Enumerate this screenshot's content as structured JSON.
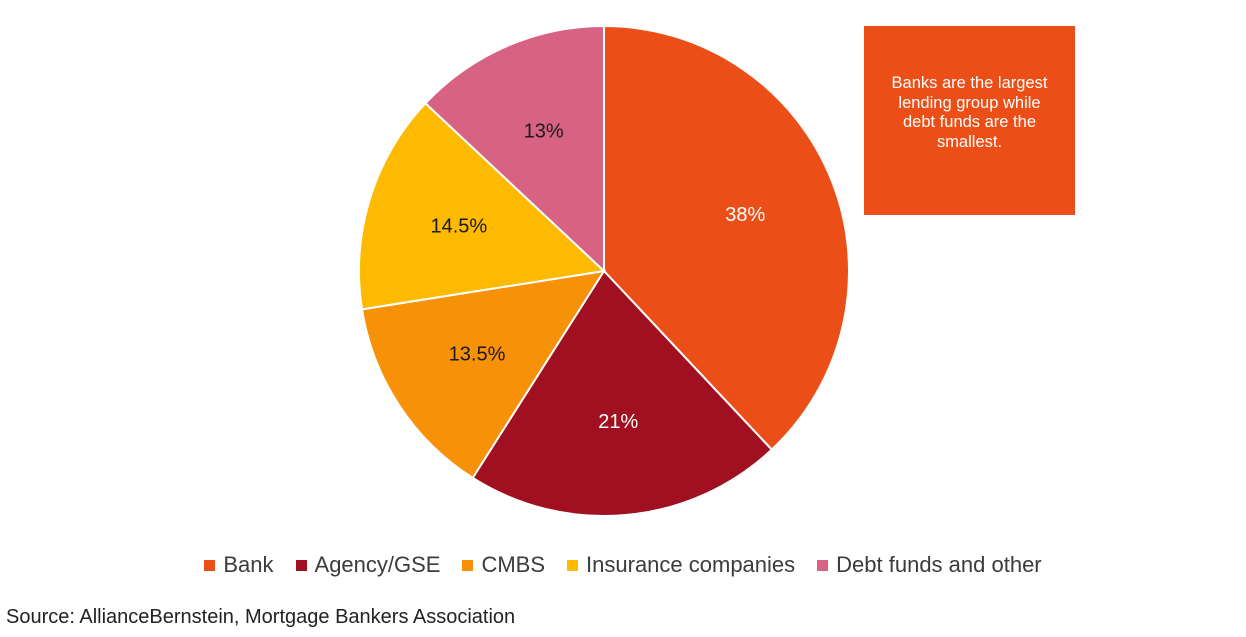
{
  "chart_data": {
    "type": "pie",
    "title": "",
    "slices": [
      {
        "name": "Bank",
        "value": 38,
        "label": "38%",
        "color": "#EC4E17",
        "label_color": "#ffffff"
      },
      {
        "name": "Agency/GSE",
        "value": 21,
        "label": "21%",
        "color": "#A11020",
        "label_color": "#ffffff"
      },
      {
        "name": "CMBS",
        "value": 13.5,
        "label": "13.5%",
        "color": "#F79208",
        "label_color": "#1a1a1a"
      },
      {
        "name": "Insurance companies",
        "value": 14.5,
        "label": "14.5%",
        "color": "#FDBA00",
        "label_color": "#1a1a1a"
      },
      {
        "name": "Debt funds and other",
        "value": 13,
        "label": "13%",
        "color": "#D86283",
        "label_color": "#1a1a1a"
      }
    ],
    "legend_position": "bottom",
    "start_angle": "12 o'clock",
    "direction": "clockwise"
  },
  "callout": {
    "text": "Banks are the largest lending group while debt funds are the smallest.",
    "background": "#EC4E17"
  },
  "legend": {
    "items": [
      {
        "label": "Bank",
        "color": "#EC4E17"
      },
      {
        "label": "Agency/GSE",
        "color": "#A11020"
      },
      {
        "label": "CMBS",
        "color": "#F79208"
      },
      {
        "label": "Insurance companies",
        "color": "#FDBA00"
      },
      {
        "label": "Debt funds and other",
        "color": "#D86283"
      }
    ]
  },
  "source": {
    "text": "Source: AllianceBernstein, Mortgage Bankers Association"
  }
}
